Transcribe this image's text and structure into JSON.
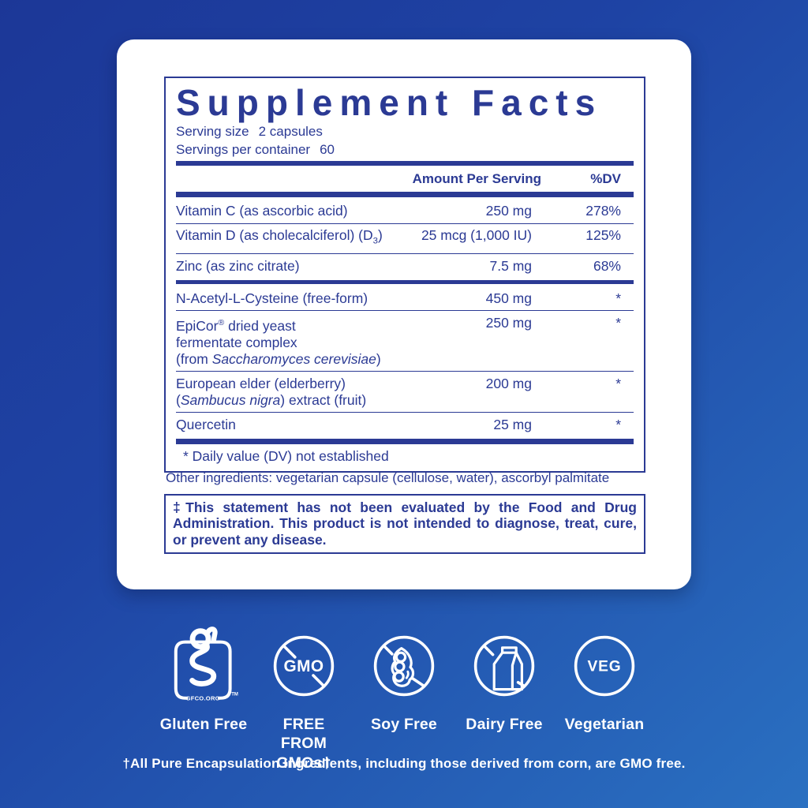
{
  "colors": {
    "navy": "#2b3a94",
    "bg_top": "#1c3797",
    "bg_bottom": "#2a70c1",
    "card": "#ffffff",
    "badge_white": "#ffffff"
  },
  "panel": {
    "title": "Supplement Facts",
    "serving_size_label": "Serving size",
    "serving_size_value": "2 capsules",
    "servings_label": "Servings per container",
    "servings_value": "60",
    "col_amount": "Amount Per Serving",
    "col_dv": "%DV",
    "vitamin_rows": [
      {
        "name": [
          [
            {
              "t": "Vitamin C (as ascorbic acid)"
            }
          ]
        ],
        "amount": "250 mg",
        "dv": "278%"
      },
      {
        "name": [
          [
            {
              "t": "Vitamin D (as cholecalciferol) (D"
            },
            {
              "t": "3",
              "sub": true
            },
            {
              "t": ")"
            }
          ]
        ],
        "amount": "25 mcg (1,000 IU)",
        "dv": "125%"
      },
      {
        "name": [
          [
            {
              "t": "Zinc (as zinc citrate)"
            }
          ]
        ],
        "amount": "7.5 mg",
        "dv": "68%"
      }
    ],
    "other_rows": [
      {
        "name": [
          [
            {
              "t": "N-Acetyl-L-Cysteine (free-form)"
            }
          ]
        ],
        "amount": "450 mg",
        "dv": "*"
      },
      {
        "name": [
          [
            {
              "t": "EpiCor"
            },
            {
              "t": "®",
              "sup": true
            },
            {
              "t": " dried yeast"
            }
          ],
          [
            {
              "t": "fermentate complex"
            }
          ],
          [
            {
              "t": "(from "
            },
            {
              "t": "Saccharomyces cerevisiae",
              "i": true
            },
            {
              "t": ")"
            }
          ]
        ],
        "amount": "250 mg",
        "dv": "*"
      },
      {
        "name": [
          [
            {
              "t": "European elder (elderberry)"
            }
          ],
          [
            {
              "t": "("
            },
            {
              "t": "Sambucus nigra",
              "i": true
            },
            {
              "t": ") extract (fruit)"
            }
          ]
        ],
        "amount": "200 mg",
        "dv": "*"
      },
      {
        "name": [
          [
            {
              "t": "Quercetin"
            }
          ]
        ],
        "amount": "25 mg",
        "dv": "*"
      }
    ],
    "dv_note": "* Daily value (DV) not established"
  },
  "other_ingredients": "Other ingredients: vegetarian capsule (cellulose, water), ascorbyl palmitate",
  "disclaimer": "‡This statement has not been evaluated by the Food and Drug Administration. This product is not intended to diagnose, treat, cure, or prevent any disease.",
  "badges": [
    {
      "label": "Gluten Free",
      "org_text": "GFCO.ORG",
      "tm": "TM"
    },
    {
      "label": "FREE FROM GMOs†",
      "icon_text": "GMO"
    },
    {
      "label": "Soy Free"
    },
    {
      "label": "Dairy Free"
    },
    {
      "label": "Vegetarian",
      "icon_text": "VEG"
    }
  ],
  "bottom_note": "†All Pure Encapsulation Ingredients, including those derived from corn, are GMO free."
}
